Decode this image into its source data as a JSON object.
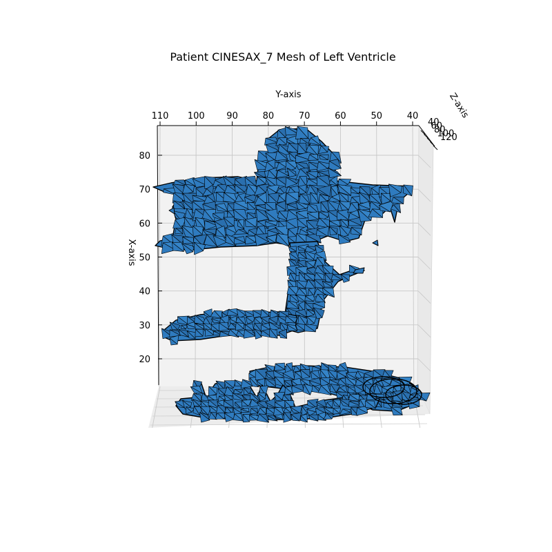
{
  "chart_data": {
    "type": "3d-surface-mesh",
    "title": "Patient CINESAX_7 Mesh of Left Ventricle",
    "xlabel": "X-axis",
    "ylabel": "Y-axis",
    "zlabel": "Z-axis",
    "x_ticks": [
      20,
      30,
      40,
      50,
      60,
      70,
      80
    ],
    "y_ticks": [
      110,
      100,
      90,
      80,
      70,
      60,
      50,
      40
    ],
    "z_ticks": [
      40,
      60,
      80,
      100,
      120
    ],
    "x_range": [
      12,
      88
    ],
    "y_range": [
      38,
      111
    ],
    "grid": true,
    "face_color": "#2f7bbf",
    "edge_color": "#000000",
    "pane_color": "#f2f2f2",
    "blobs": [
      {
        "name": "upper-arm",
        "y": [
          111,
          40
        ],
        "x": [
          52,
          71
        ]
      },
      {
        "name": "central-column",
        "y": [
          80,
          60
        ],
        "x": [
          32,
          86
        ]
      },
      {
        "name": "middle-arm",
        "y": [
          110,
          66
        ],
        "x": [
          25,
          33
        ]
      },
      {
        "name": "base-ring",
        "y": [
          104,
          42
        ],
        "x": [
          5,
          17
        ]
      }
    ]
  }
}
